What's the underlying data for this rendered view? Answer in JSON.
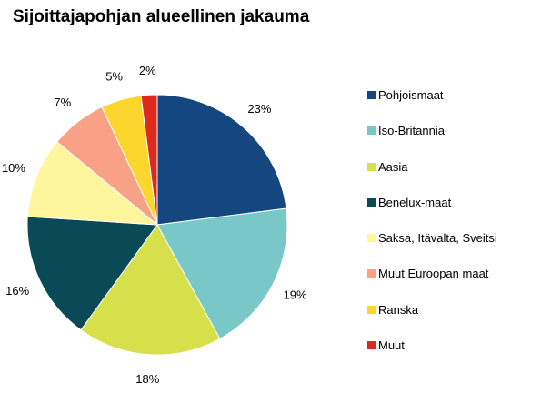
{
  "chart_data": {
    "type": "pie",
    "title": "Sijoittajapohjan alueellinen jakauma",
    "categories": [
      "Pohjoismaat",
      "Iso-Britannia",
      "Aasia",
      "Benelux-maat",
      "Saksa, Itävalta, Sveitsi",
      "Muut Euroopan maat",
      "Ranska",
      "Muut"
    ],
    "values": [
      23,
      19,
      18,
      16,
      10,
      7,
      5,
      2
    ],
    "value_labels": [
      "23%",
      "19%",
      "18%",
      "16%",
      "10%",
      "7%",
      "5%",
      "2%"
    ],
    "unit": "%",
    "colors": [
      "#14477f",
      "#7ac7c7",
      "#d6e04a",
      "#0a4a57",
      "#fff59c",
      "#f9a186",
      "#fcd62c",
      "#dc2a1c"
    ],
    "start_angle_deg": 0,
    "direction": "clockwise",
    "legend_position": "right"
  }
}
